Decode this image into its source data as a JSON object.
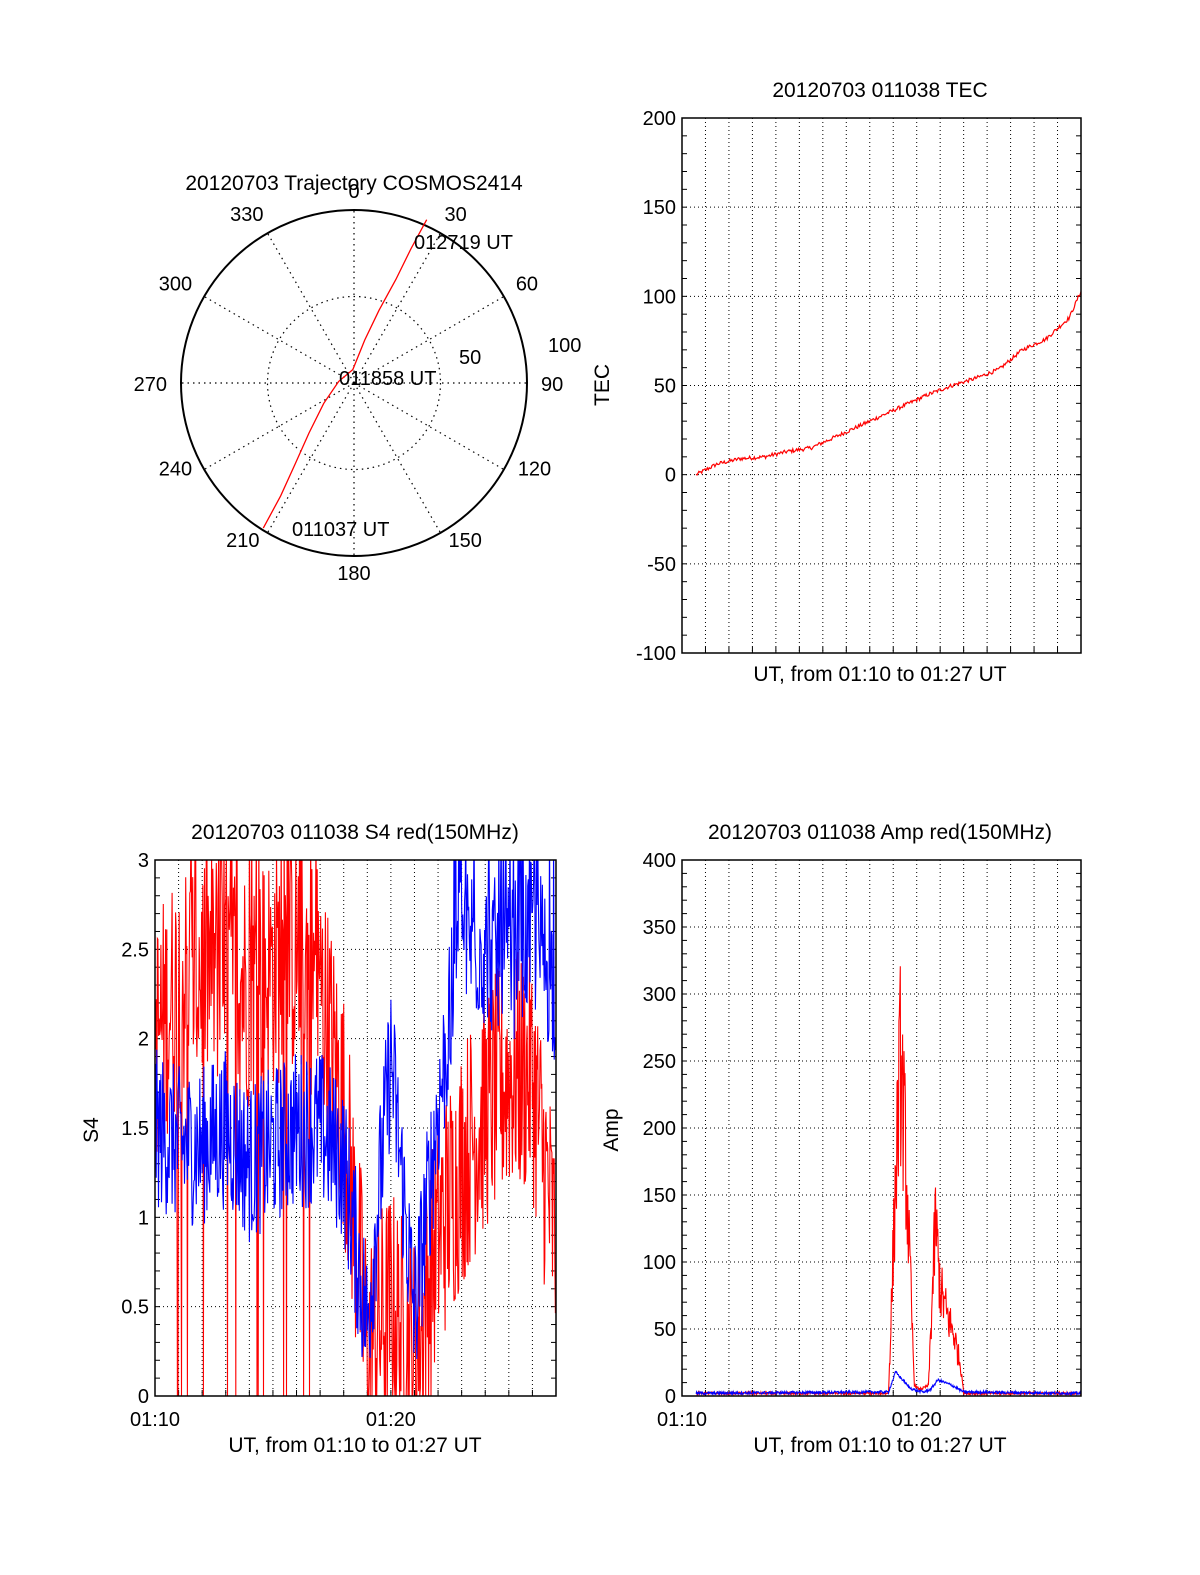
{
  "colors": {
    "red": "#ff0000",
    "blue": "#0000ff",
    "axis": "#000000",
    "grid": "#000000",
    "background": "#ffffff"
  },
  "chart_data": [
    {
      "type": "polar",
      "title": "20120703 Trajectory COSMOS2414",
      "azimuth_ticks": [
        "0",
        "30",
        "60",
        "90",
        "120",
        "150",
        "180",
        "210",
        "240",
        "270",
        "300",
        "330"
      ],
      "radial_ticks": [
        "50",
        "100"
      ],
      "grid": true,
      "series": [
        {
          "color": "red",
          "points": [
            {
              "az": 212,
              "el_from_center": 89
            },
            {
              "az": 213,
              "el_from_center": 70
            },
            {
              "az": 216,
              "el_from_center": 52
            },
            {
              "az": 222,
              "el_from_center": 35
            },
            {
              "az": 236,
              "el_from_center": 19
            },
            {
              "az": 276,
              "el_from_center": 8
            },
            {
              "az": 355,
              "el_from_center": 7
            },
            {
              "az": 14,
              "el_from_center": 23
            },
            {
              "az": 19,
              "el_from_center": 40
            },
            {
              "az": 22,
              "el_from_center": 58
            },
            {
              "az": 23,
              "el_from_center": 76
            },
            {
              "az": 24,
              "el_from_center": 93
            }
          ]
        }
      ],
      "annotations": [
        {
          "text": "012719 UT",
          "at": "end"
        },
        {
          "text": "011858 UT",
          "at": "zenith"
        },
        {
          "text": "011037 UT",
          "at": "start"
        }
      ]
    },
    {
      "type": "line",
      "title": "20120703 011038 TEC",
      "xlabel": "UT, from 01:10 to 01:27 UT",
      "ylabel": "TEC",
      "xlim": [
        "01:10",
        "01:27"
      ],
      "ylim": [
        -100,
        200
      ],
      "yticks": [
        "-100",
        "-50",
        "0",
        "50",
        "100",
        "150",
        "200"
      ],
      "grid": true,
      "series": [
        {
          "color": "red",
          "x_minutes_after_0110": [
            0.6,
            1.5,
            2.5,
            3.5,
            4.5,
            5.5,
            6.5,
            7.5,
            8.5,
            9.5,
            10.5,
            11.5,
            12.5,
            13.5,
            14.5,
            15.5,
            16.5,
            17.0
          ],
          "values": [
            0,
            6,
            9,
            10,
            13,
            15,
            21,
            27,
            33,
            39,
            45,
            50,
            54,
            59,
            70,
            76,
            88,
            103
          ]
        }
      ]
    },
    {
      "type": "line",
      "title": "20120703 011038 S4 red(150MHz)",
      "xlabel": "UT, from 01:10 to 01:27 UT",
      "ylabel": "S4",
      "xlim": [
        "01:10",
        "01:27"
      ],
      "ylim": [
        0,
        3
      ],
      "yticks": [
        "0",
        "0.5",
        "1",
        "1.5",
        "2",
        "2.5",
        "3"
      ],
      "xticks": [
        "01:10",
        "01:20"
      ],
      "grid": true,
      "series": [
        {
          "color": "red",
          "x_minutes_after_0110": [
            0,
            1,
            2,
            3,
            4,
            5,
            6,
            7,
            8,
            9,
            10,
            11,
            12,
            13,
            14,
            15,
            16,
            17
          ],
          "values": [
            2.0,
            2.3,
            2.4,
            2.4,
            2.3,
            2.4,
            2.5,
            2.3,
            1.6,
            0.25,
            0.5,
            0.2,
            0.9,
            1.3,
            1.6,
            1.8,
            1.8,
            0.8
          ]
        },
        {
          "color": "blue",
          "x_minutes_after_0110": [
            0,
            1,
            2,
            3,
            4,
            5,
            6,
            7,
            8,
            9,
            10,
            11,
            12,
            13,
            14,
            15,
            16,
            17
          ],
          "values": [
            1.5,
            1.4,
            1.4,
            1.5,
            1.3,
            1.4,
            1.5,
            1.5,
            1.3,
            0.4,
            1.9,
            0.45,
            1.6,
            2.6,
            2.5,
            2.4,
            2.6,
            2.3
          ]
        }
      ]
    },
    {
      "type": "line",
      "title": "20120703 011038 Amp red(150MHz)",
      "xlabel": "UT, from 01:10 to 01:27 UT",
      "ylabel": "Amp",
      "xlim": [
        "01:10",
        "01:27"
      ],
      "ylim": [
        0,
        400
      ],
      "yticks": [
        "0",
        "50",
        "100",
        "150",
        "200",
        "250",
        "300",
        "350",
        "400"
      ],
      "xticks": [
        "01:10",
        "01:20"
      ],
      "grid": true,
      "series": [
        {
          "color": "red",
          "x_minutes_after_0110": [
            0,
            8.8,
            9.1,
            9.3,
            9.5,
            9.7,
            9.9,
            10.1,
            10.3,
            10.5,
            10.8,
            11.0,
            11.3,
            11.6,
            11.9,
            12.0,
            17.0
          ],
          "values": [
            2,
            2,
            160,
            250,
            190,
            100,
            8,
            5,
            6,
            8,
            130,
            80,
            60,
            45,
            20,
            2,
            2
          ]
        },
        {
          "color": "blue",
          "x_minutes_after_0110": [
            0,
            8.8,
            9.1,
            9.4,
            9.7,
            10.0,
            10.3,
            10.6,
            10.9,
            11.2,
            11.5,
            11.8,
            12.0,
            17.0
          ],
          "values": [
            2,
            3,
            18,
            12,
            6,
            4,
            3,
            5,
            12,
            10,
            8,
            5,
            3,
            2
          ]
        }
      ]
    }
  ]
}
